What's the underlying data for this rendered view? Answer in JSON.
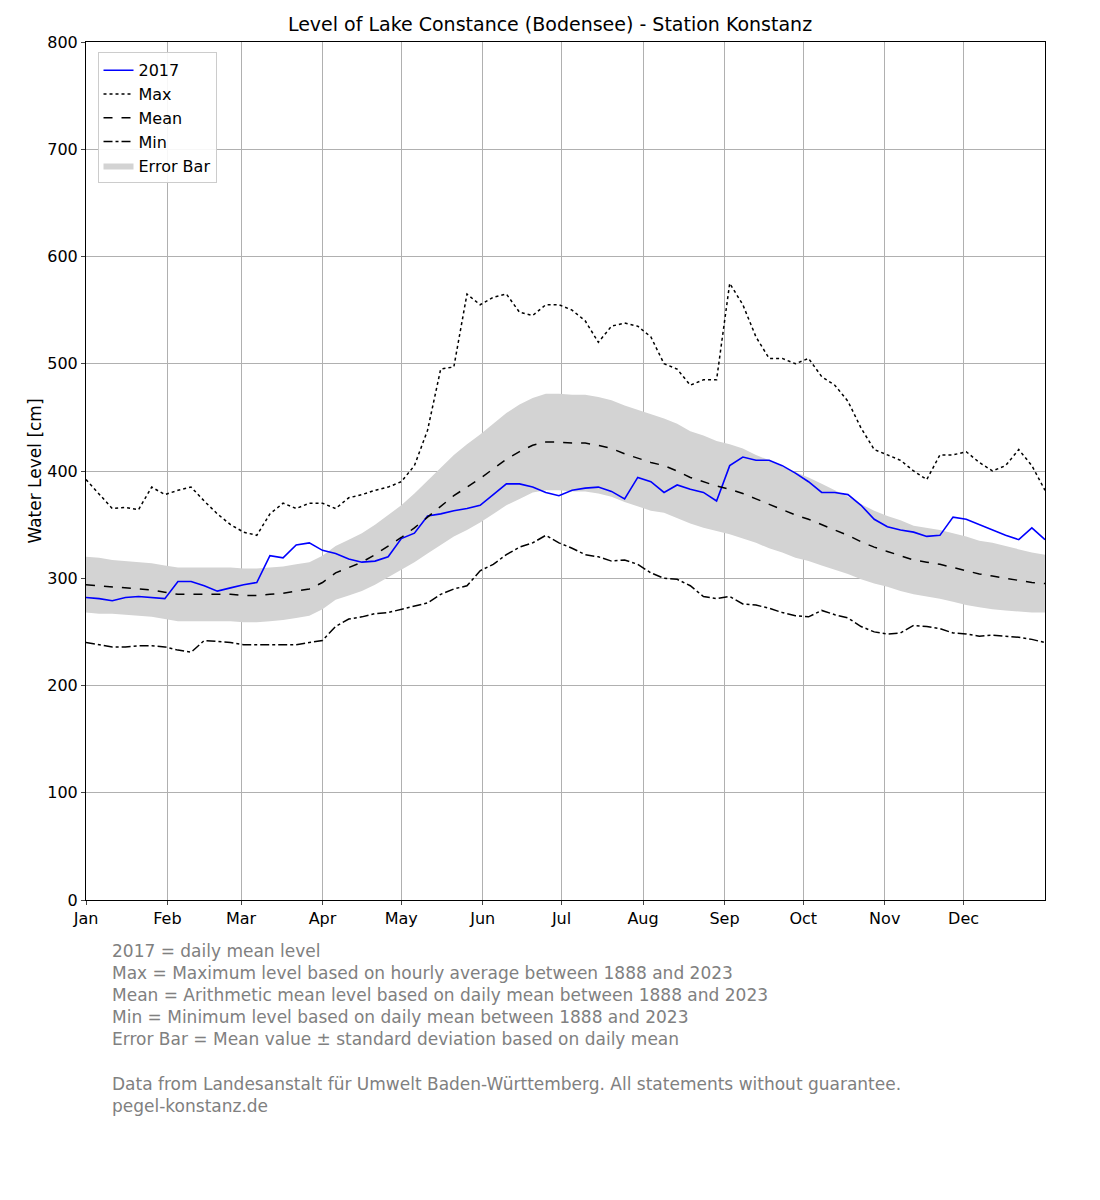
{
  "chart_data": {
    "type": "line",
    "title": "Level of Lake Constance (Bodensee) - Station Konstanz",
    "y_label": "Water Level [cm]",
    "x": [
      0,
      5,
      10,
      15,
      20,
      25,
      30,
      35,
      40,
      45,
      50,
      55,
      60,
      65,
      70,
      75,
      80,
      85,
      90,
      95,
      100,
      105,
      110,
      115,
      120,
      125,
      130,
      135,
      140,
      145,
      150,
      155,
      160,
      165,
      170,
      175,
      180,
      185,
      190,
      195,
      200,
      205,
      210,
      215,
      220,
      225,
      230,
      235,
      240,
      245,
      250,
      255,
      260,
      265,
      270,
      275,
      280,
      285,
      290,
      295,
      300,
      305,
      310,
      315,
      320,
      325,
      330,
      335,
      340,
      345,
      350,
      355,
      360,
      365
    ],
    "xlim": [
      0,
      365
    ],
    "xticks": [
      {
        "value": 0,
        "label": "Jan"
      },
      {
        "value": 31,
        "label": "Feb"
      },
      {
        "value": 59,
        "label": "Mar"
      },
      {
        "value": 90,
        "label": "Apr"
      },
      {
        "value": 120,
        "label": "May"
      },
      {
        "value": 151,
        "label": "Jun"
      },
      {
        "value": 181,
        "label": "Jul"
      },
      {
        "value": 212,
        "label": "Aug"
      },
      {
        "value": 243,
        "label": "Sep"
      },
      {
        "value": 273,
        "label": "Oct"
      },
      {
        "value": 304,
        "label": "Nov"
      },
      {
        "value": 334,
        "label": "Dec"
      }
    ],
    "ylim": [
      0,
      800
    ],
    "yticks": [
      0,
      100,
      200,
      300,
      400,
      500,
      600,
      700,
      800
    ],
    "grid": true,
    "legend": "upper left",
    "series": [
      {
        "name": "2017",
        "color": "#0000ff",
        "line_style": "solid",
        "values": [
          282,
          281,
          279,
          282,
          283,
          282,
          281,
          297,
          297,
          293,
          288,
          291,
          294,
          296,
          321,
          319,
          331,
          333,
          326,
          323,
          318,
          315,
          316,
          320,
          337,
          342,
          358,
          360,
          363,
          365,
          368,
          378,
          388,
          388,
          385,
          380,
          377,
          382,
          384,
          385,
          381,
          374,
          394,
          390,
          380,
          387,
          383,
          380,
          372,
          405,
          413,
          410,
          410,
          405,
          398,
          390,
          380,
          380,
          378,
          368,
          355,
          348,
          345,
          343,
          339,
          340,
          357,
          355,
          350,
          345,
          340,
          336,
          347,
          336
        ]
      },
      {
        "name": "Max",
        "color": "#000000",
        "line_style": "dotted",
        "values": [
          392,
          378,
          365,
          366,
          364,
          385,
          378,
          382,
          385,
          372,
          360,
          350,
          343,
          340,
          360,
          370,
          365,
          370,
          370,
          365,
          375,
          378,
          382,
          385,
          390,
          405,
          438,
          495,
          497,
          565,
          555,
          562,
          565,
          548,
          545,
          555,
          555,
          550,
          540,
          520,
          535,
          538,
          535,
          525,
          500,
          495,
          480,
          485,
          485,
          575,
          555,
          525,
          505,
          505,
          500,
          505,
          488,
          480,
          465,
          440,
          420,
          415,
          410,
          400,
          392,
          415,
          415,
          418,
          408,
          400,
          405,
          420,
          405,
          382
        ]
      },
      {
        "name": "Mean",
        "color": "#000000",
        "line_style": "dashed",
        "values": [
          294,
          293,
          292,
          291,
          290,
          289,
          287,
          285,
          285,
          285,
          285,
          285,
          284,
          284,
          285,
          286,
          288,
          290,
          296,
          305,
          310,
          315,
          322,
          330,
          338,
          347,
          357,
          367,
          377,
          385,
          393,
          402,
          411,
          418,
          424,
          427,
          427,
          426,
          426,
          424,
          421,
          416,
          412,
          408,
          405,
          400,
          394,
          390,
          386,
          383,
          379,
          374,
          369,
          364,
          359,
          355,
          350,
          345,
          340,
          334,
          329,
          325,
          321,
          317,
          315,
          313,
          310,
          307,
          304,
          302,
          300,
          298,
          296,
          295
        ],
        "error_bar": {
          "name": "Error Bar",
          "color": "#d3d3d3",
          "values": [
            26,
            26,
            25,
            25,
            25,
            25,
            25,
            25,
            25,
            25,
            25,
            25,
            25,
            25,
            25,
            25,
            25,
            25,
            25,
            25,
            26,
            27,
            28,
            29,
            30,
            32,
            34,
            36,
            38,
            40,
            41,
            42,
            43,
            44,
            44,
            45,
            45,
            45,
            45,
            45,
            45,
            45,
            45,
            45,
            44,
            44,
            43,
            43,
            42,
            42,
            42,
            41,
            41,
            40,
            40,
            39,
            38,
            37,
            36,
            35,
            34,
            33,
            33,
            32,
            32,
            32,
            32,
            32,
            31,
            31,
            30,
            29,
            28,
            27
          ]
        }
      },
      {
        "name": "Min",
        "color": "#000000",
        "line_style": "dashdot",
        "values": [
          240,
          238,
          236,
          236,
          237,
          237,
          236,
          233,
          231,
          242,
          241,
          240,
          238,
          238,
          238,
          238,
          238,
          240,
          242,
          255,
          262,
          264,
          267,
          268,
          271,
          274,
          277,
          285,
          290,
          293,
          307,
          313,
          322,
          329,
          333,
          340,
          333,
          328,
          322,
          320,
          316,
          317,
          313,
          305,
          300,
          299,
          293,
          283,
          281,
          283,
          276,
          275,
          272,
          268,
          265,
          264,
          270,
          266,
          263,
          255,
          250,
          248,
          249,
          256,
          255,
          253,
          249,
          248,
          246,
          247,
          246,
          245,
          243,
          240
        ]
      }
    ],
    "notes": [
      [
        "2017 = daily mean level",
        "Max = Maximum level based on hourly average between 1888 and 2023",
        "Mean = Arithmetic mean level based on daily mean between 1888 and 2023",
        "Min = Minimum level based on daily mean between 1888 and 2023",
        "Error Bar = Mean value ± standard deviation based on daily mean"
      ],
      [
        "Data from Landesanstalt für Umwelt Baden-Württemberg. All statements without guarantee.",
        "pegel-konstanz.de"
      ]
    ]
  }
}
